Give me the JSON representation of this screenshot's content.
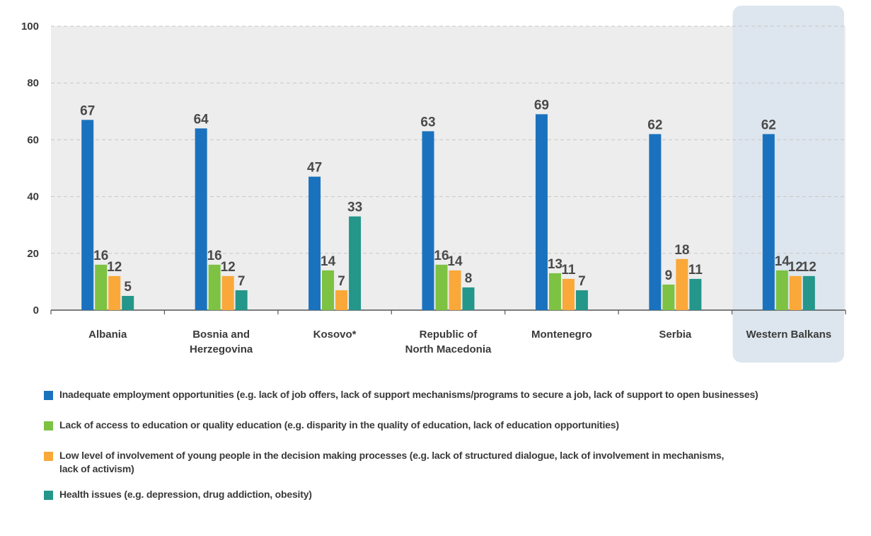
{
  "chart_data": {
    "type": "bar",
    "categories": [
      [
        "Albania"
      ],
      [
        "Bosnia and",
        "Herzegovina"
      ],
      [
        "Kosovo*"
      ],
      [
        "Republic of",
        "North Macedonia"
      ],
      [
        "Montenegro"
      ],
      [
        "Serbia"
      ],
      [
        "Western Balkans"
      ]
    ],
    "highlighted_category": "Western Balkans",
    "series": [
      {
        "name": "Inadequate employment opportunities (e.g. lack of job offers, lack of support mechanisms/programs to secure a job, lack of support to open businesses)",
        "color": "#1a72be",
        "values": [
          67,
          64,
          47,
          63,
          69,
          62,
          62
        ]
      },
      {
        "name": "Lack of access to education or quality education (e.g. disparity in the quality of education, lack of education opportunities)",
        "color": "#7dc242",
        "values": [
          16,
          16,
          14,
          16,
          13,
          9,
          14
        ]
      },
      {
        "name": "Low level of involvement of young people in the decision making processes (e.g. lack of structured dialogue, lack of involvement in mechanisms, lack of activism)",
        "color": "#f9a839",
        "values": [
          12,
          12,
          7,
          14,
          11,
          18,
          12
        ]
      },
      {
        "name": "Health issues (e.g. depression, drug addiction, obesity)",
        "color": "#24968a",
        "values": [
          5,
          7,
          33,
          8,
          7,
          11,
          12
        ]
      }
    ],
    "ylim": [
      0,
      100
    ],
    "yticks": [
      0,
      20,
      40,
      60,
      80,
      100
    ],
    "grid": true,
    "plot_background": "#ededed",
    "highlight_background": "#dde6ee",
    "legend_position": "bottom"
  },
  "legend": {
    "items": [
      {
        "lines": [
          "Inadequate employment opportunities (e.g. lack of job offers, lack of support mechanisms/programs to secure a job, lack of support to open businesses)"
        ],
        "color": "#1a72be"
      },
      {
        "lines": [
          "Lack of access to education or quality education (e.g. disparity in the quality of education, lack of education opportunities)"
        ],
        "color": "#7dc242"
      },
      {
        "lines": [
          "Low level of involvement of young people in the decision making processes (e.g. lack of structured dialogue, lack of involvement in mechanisms,",
          "lack of activism)"
        ],
        "color": "#f9a839"
      },
      {
        "lines": [
          "Health issues (e.g. depression, drug addiction, obesity)"
        ],
        "color": "#24968a"
      }
    ]
  }
}
